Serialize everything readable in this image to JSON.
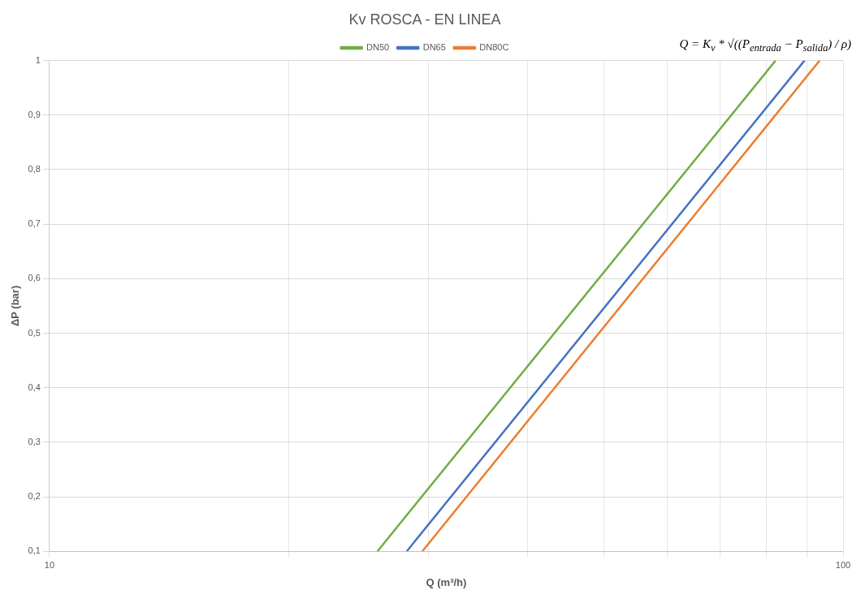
{
  "chart_data": {
    "type": "line",
    "title": "Kv ROSCA - EN LINEA",
    "xlabel": "Q (m³/h)",
    "ylabel": "ΔP (bar)",
    "log": "x",
    "legend": "top",
    "grid": true,
    "marker": "none",
    "line_style": "solid",
    "xlim": [
      10,
      100
    ],
    "xticks": [
      10,
      {
        "value": 20,
        "label": null
      },
      {
        "value": 30,
        "label": null
      },
      {
        "value": 40,
        "label": null
      },
      {
        "value": 50,
        "label": null
      },
      {
        "value": 60,
        "label": null
      },
      {
        "value": 70,
        "label": null
      },
      {
        "value": 80,
        "label": null
      },
      {
        "value": 90,
        "label": null
      },
      100
    ],
    "ylim": [
      0.1,
      1
    ],
    "yticks": [
      {
        "value": 0.1,
        "label": "0,1"
      },
      {
        "value": 0.2,
        "label": "0,2"
      },
      {
        "value": 0.3,
        "label": "0,3"
      },
      {
        "value": 0.4,
        "label": "0,4"
      },
      {
        "value": 0.5,
        "label": "0,5"
      },
      {
        "value": 0.6,
        "label": "0,6"
      },
      {
        "value": 0.7,
        "label": "0,7"
      },
      {
        "value": 0.8,
        "label": "0,8"
      },
      {
        "value": 0.9,
        "label": "0,9"
      },
      1
    ],
    "annotations": [
      "Q = K$_{v}$ * √((P$_{entrada}$ − P$_{salida}$) / ρ)"
    ],
    "series": [
      {
        "name": "DN50",
        "color": "#70ad47",
        "x": [
          25.9,
          82.2
        ],
        "values": [
          0.1,
          1
        ]
      },
      {
        "name": "DN65",
        "color": "#4472c4",
        "x": [
          28.2,
          89.4
        ],
        "values": [
          0.1,
          1
        ]
      },
      {
        "name": "DN80C",
        "color": "#ed7d31",
        "x": [
          29.5,
          93.4
        ],
        "values": [
          0.1,
          1
        ]
      }
    ]
  }
}
